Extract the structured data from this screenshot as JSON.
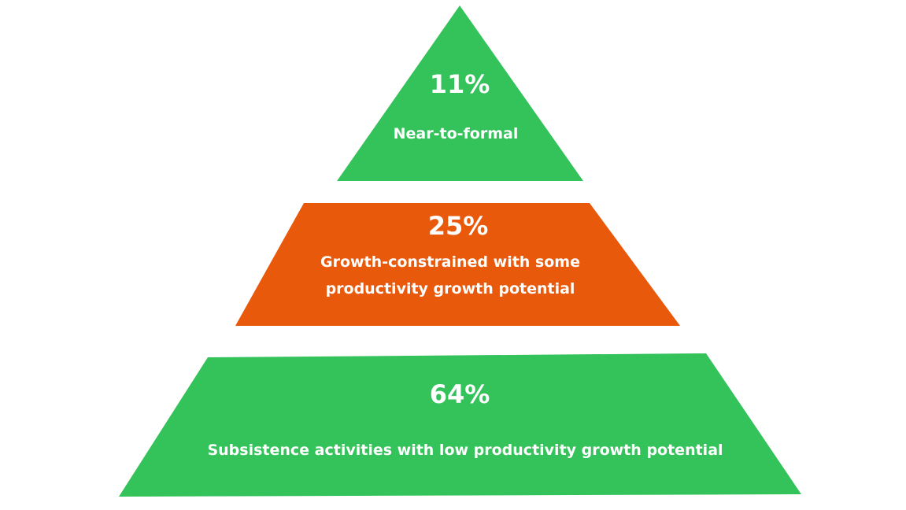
{
  "colors": {
    "green": "#34c25a",
    "orange": "#e8590c",
    "background": "#ffffff"
  },
  "tiers": [
    {
      "percent": "11%",
      "label_lines": [
        "Near-to-formal"
      ],
      "color": "#34c25a"
    },
    {
      "percent": "25%",
      "label_lines": [
        "Growth-constrained with some",
        "productivity growth potential"
      ],
      "color": "#e8590c"
    },
    {
      "percent": "64%",
      "label_lines": [
        "Subsistence activities with low productivity growth potential"
      ],
      "color": "#34c25a"
    }
  ]
}
